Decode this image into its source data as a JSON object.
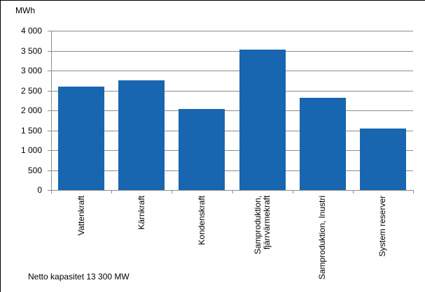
{
  "chart_data": {
    "type": "bar",
    "title": "",
    "xlabel": "",
    "ylabel": "MWh",
    "ylim": [
      0,
      4000
    ],
    "yticks": [
      0,
      500,
      1000,
      1500,
      2000,
      2500,
      3000,
      3500,
      4000
    ],
    "ytick_labels": [
      "0",
      "500",
      "1 000",
      "1 500",
      "2 000",
      "2 500",
      "3 000",
      "3 500",
      "4 000"
    ],
    "categories": [
      "Vattenkraft",
      "Kärnkraft",
      "Kondenskraft",
      "Samproduktion,\nfjärrvärmekraft",
      "Samproduktion, Inustri",
      "System reserver"
    ],
    "values": [
      2600,
      2750,
      2040,
      3530,
      2320,
      1550
    ],
    "grid": true,
    "legend": null,
    "bar_color": "#1866b0",
    "annotation": "Netto kapasitet 13 300 MW"
  },
  "labels": {
    "unit": "MWh",
    "note": "Netto kapasitet 13 300 MW"
  }
}
